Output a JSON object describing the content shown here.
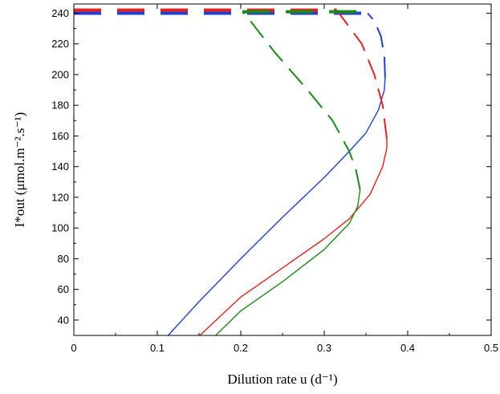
{
  "chart_data": {
    "type": "line",
    "xlabel": "Dilution rate u (d⁻¹)",
    "ylabel": "I*out (μmol.m⁻².s⁻¹)",
    "xlim": [
      0,
      0.5
    ],
    "ylim": [
      30,
      246
    ],
    "x_ticks": [
      "0",
      "0.1",
      "0.2",
      "0.3",
      "0.4",
      "0.5"
    ],
    "y_ticks": [
      "40",
      "60",
      "80",
      "100",
      "120",
      "140",
      "160",
      "180",
      "200",
      "220",
      "240"
    ],
    "grid": false,
    "legend": "none",
    "series": [
      {
        "color": "#1f3fd8",
        "segments": [
          {
            "style": "solid",
            "points": [
              [
                0.113,
                30
              ],
              [
                0.15,
                52
              ],
              [
                0.2,
                80
              ],
              [
                0.25,
                107
              ],
              [
                0.3,
                133
              ],
              [
                0.33,
                150
              ],
              [
                0.35,
                162
              ],
              [
                0.365,
                177
              ],
              [
                0.372,
                190
              ],
              [
                0.373,
                198
              ]
            ]
          },
          {
            "style": "dashed",
            "points": [
              [
                0.373,
                198
              ],
              [
                0.372,
                212
              ],
              [
                0.368,
                225
              ],
              [
                0.36,
                235
              ],
              [
                0.352,
                240
              ]
            ]
          },
          {
            "style": "dashed",
            "points": [
              [
                0,
                240
              ],
              [
                0.352,
                240
              ]
            ]
          }
        ]
      },
      {
        "color": "#e8211c",
        "segments": [
          {
            "style": "solid",
            "points": [
              [
                0.151,
                30
              ],
              [
                0.2,
                55
              ],
              [
                0.25,
                74
              ],
              [
                0.3,
                93
              ],
              [
                0.33,
                106
              ],
              [
                0.355,
                122
              ],
              [
                0.37,
                140
              ],
              [
                0.375,
                152
              ],
              [
                0.375,
                158
              ]
            ]
          },
          {
            "style": "dashed",
            "points": [
              [
                0.375,
                158
              ],
              [
                0.37,
                180
              ],
              [
                0.36,
                200
              ],
              [
                0.345,
                220
              ],
              [
                0.315,
                242
              ]
            ]
          },
          {
            "style": "dashed",
            "points": [
              [
                0,
                242
              ],
              [
                0.315,
                242
              ]
            ]
          }
        ]
      },
      {
        "color": "#1a8a1a",
        "segments": [
          {
            "style": "solid",
            "points": [
              [
                0.17,
                30
              ],
              [
                0.2,
                46
              ],
              [
                0.25,
                65
              ],
              [
                0.3,
                86
              ],
              [
                0.33,
                103
              ],
              [
                0.34,
                114
              ],
              [
                0.343,
                125
              ]
            ]
          },
          {
            "style": "dashed",
            "points": [
              [
                0.343,
                125
              ],
              [
                0.338,
                138
              ],
              [
                0.33,
                150
              ],
              [
                0.31,
                170
              ],
              [
                0.28,
                190
              ],
              [
                0.24,
                215
              ],
              [
                0.21,
                236
              ],
              [
                0.202,
                241
              ]
            ]
          },
          {
            "style": "dashed",
            "points": [
              [
                0.202,
                241
              ],
              [
                0.35,
                241
              ]
            ]
          }
        ]
      }
    ]
  }
}
